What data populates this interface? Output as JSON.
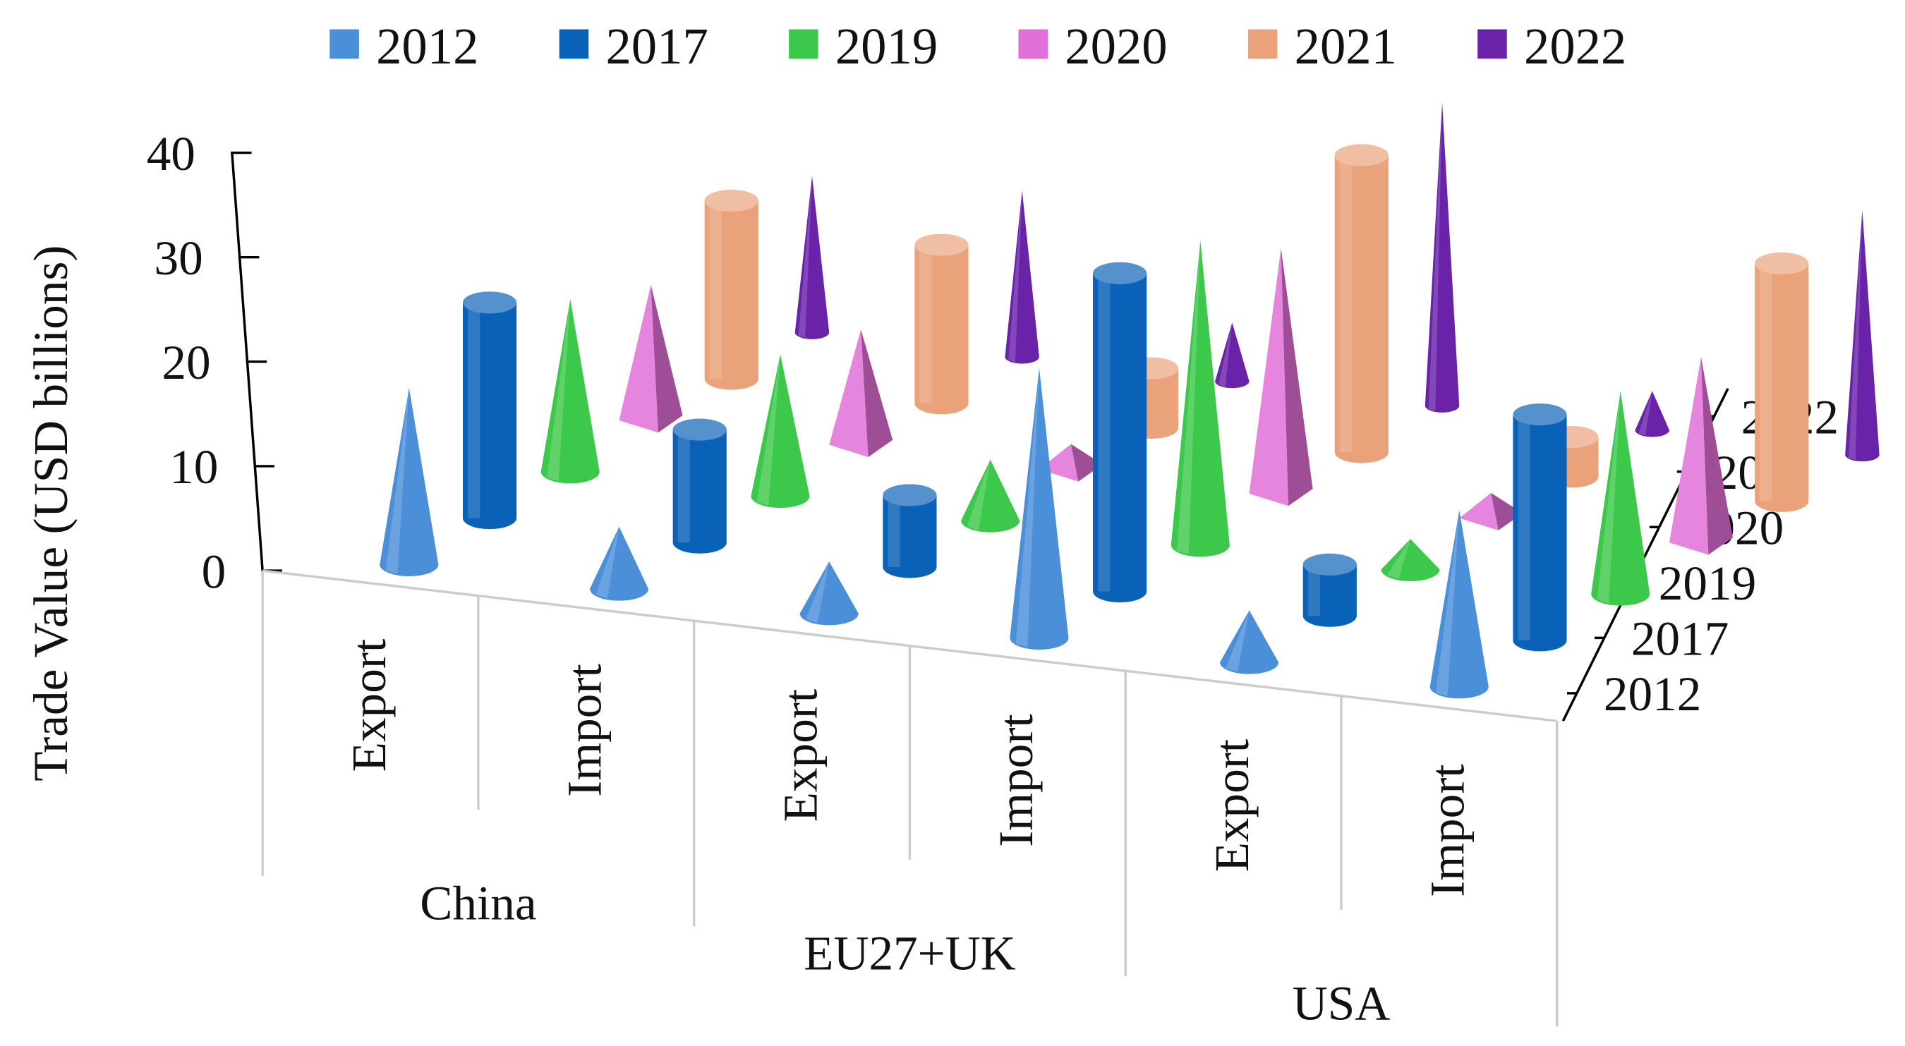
{
  "chart_data": {
    "type": "bar",
    "subtype": "3d-column (cones, cylinders, pyramids)",
    "title": "",
    "ylabel": "Trade Value (USD billions)",
    "ylim": [
      0,
      40
    ],
    "yticks": [
      "0",
      "10",
      "20",
      "30",
      "40"
    ],
    "legend_position": "top",
    "grid": false,
    "category_groups": [
      {
        "name": "China",
        "categories": [
          "Export",
          "Import"
        ]
      },
      {
        "name": "EU27+UK",
        "categories": [
          "Export",
          "Import"
        ]
      },
      {
        "name": "USA",
        "categories": [
          "Export",
          "Import"
        ]
      }
    ],
    "categories": [
      "Export",
      "Import",
      "Export",
      "Import",
      "Export",
      "Import"
    ],
    "depth_labels": [
      "2012",
      "2017",
      "2019",
      "2020",
      "2021",
      "2022"
    ],
    "series": [
      {
        "name": "2012",
        "shape": "cone",
        "color": "#4a8fd8",
        "values": [
          17,
          6,
          5,
          26,
          5,
          17
        ]
      },
      {
        "name": "2017",
        "shape": "cylinder",
        "color": "#0a62b8",
        "values": [
          21,
          11,
          7,
          31,
          5,
          22
        ]
      },
      {
        "name": "2019",
        "shape": "cone",
        "color": "#3cc84a",
        "values": [
          17,
          14,
          6,
          30,
          3,
          20
        ]
      },
      {
        "name": "2020",
        "shape": "pyramid",
        "color": "#e070d8",
        "values": [
          14,
          12,
          3,
          25,
          3,
          19
        ]
      },
      {
        "name": "2021",
        "shape": "cylinder",
        "color": "#eaa27a",
        "values": [
          18,
          16,
          6,
          30,
          4,
          24
        ]
      },
      {
        "name": "2022",
        "shape": "cone",
        "color": "#6a22a8",
        "values": [
          16,
          17,
          6,
          31,
          4,
          25
        ]
      }
    ]
  }
}
